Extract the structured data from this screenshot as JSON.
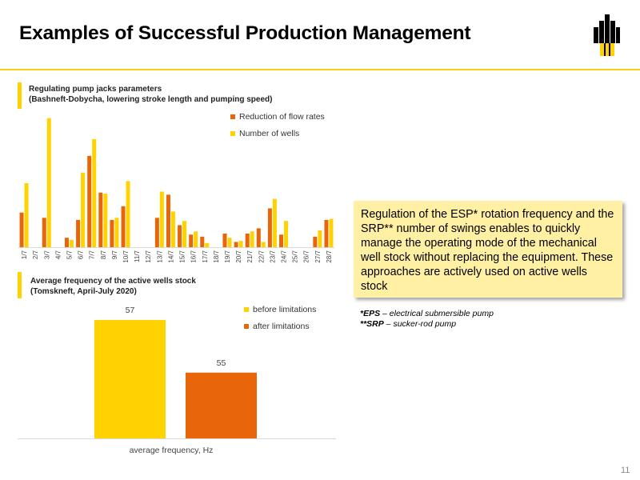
{
  "header": {
    "title": "Examples of Successful Production Management",
    "page_number": "11"
  },
  "colors": {
    "accent_yellow": "#ffd200",
    "bar_yellow": "#ffd200",
    "bar_orange": "#e8650a"
  },
  "logo": {
    "icon": "rosneft-logo-icon"
  },
  "chart_data": [
    {
      "type": "bar",
      "title": "Regulating pump jacks parameters",
      "subtitle": "(Bashneft-Dobycha, lowering stroke length and pumping speed)",
      "categories": [
        "1/7",
        "2/7",
        "3/7",
        "4/7",
        "5/7",
        "6/7",
        "7/7",
        "8/7",
        "9/7",
        "10/7",
        "11/7",
        "12/7",
        "13/7",
        "14/7",
        "15/7",
        "16/7",
        "17/7",
        "18/7",
        "19/7",
        "20/7",
        "21/7",
        "22/7",
        "23/7",
        "24/7",
        "25/7",
        "26/7",
        "27/7",
        "28/7"
      ],
      "series": [
        {
          "name": "Reduction of flow rates",
          "color": "#e8650a",
          "values": [
            33,
            0,
            28,
            0,
            9,
            26,
            87,
            52,
            26,
            39,
            0,
            0,
            28,
            50,
            21,
            12,
            10,
            0,
            13,
            5,
            13,
            18,
            37,
            12,
            0,
            0,
            10,
            26
          ]
        },
        {
          "name": "Number of wells",
          "color": "#ffd200",
          "values": [
            61,
            0,
            123,
            0,
            7,
            71,
            103,
            51,
            28,
            63,
            0,
            0,
            53,
            34,
            25,
            15,
            4,
            0,
            9,
            6,
            15,
            5,
            46,
            25,
            0,
            0,
            16,
            27
          ]
        }
      ],
      "ylim": [
        0,
        125
      ],
      "grid": false,
      "legend": "top-right"
    },
    {
      "type": "bar",
      "title": "Average frequency of the active wells stock",
      "subtitle": "(Tomskneft, April-July 2020)",
      "categories": [
        "average frequency, Hz"
      ],
      "series": [
        {
          "name": "before limitations",
          "color": "#ffd200",
          "values": [
            57
          ]
        },
        {
          "name": "after limitations",
          "color": "#e8650a",
          "values": [
            55
          ]
        }
      ],
      "data_labels": [
        "57",
        "55"
      ],
      "ylim": [
        52.5,
        57
      ],
      "grid": false,
      "legend": "top-right"
    }
  ],
  "callout": {
    "text": "Regulation of the ESP* rotation frequency and the SRP** number of swings enables to quickly manage the operating mode of the mechanical well stock without replacing the equipment. These approaches are actively used on active wells stock"
  },
  "footnotes": {
    "esp_abbr": "*EPS",
    "esp_text": " – electrical submersible pump",
    "srp_abbr": "**SRP",
    "srp_text": " – sucker-rod pump"
  }
}
